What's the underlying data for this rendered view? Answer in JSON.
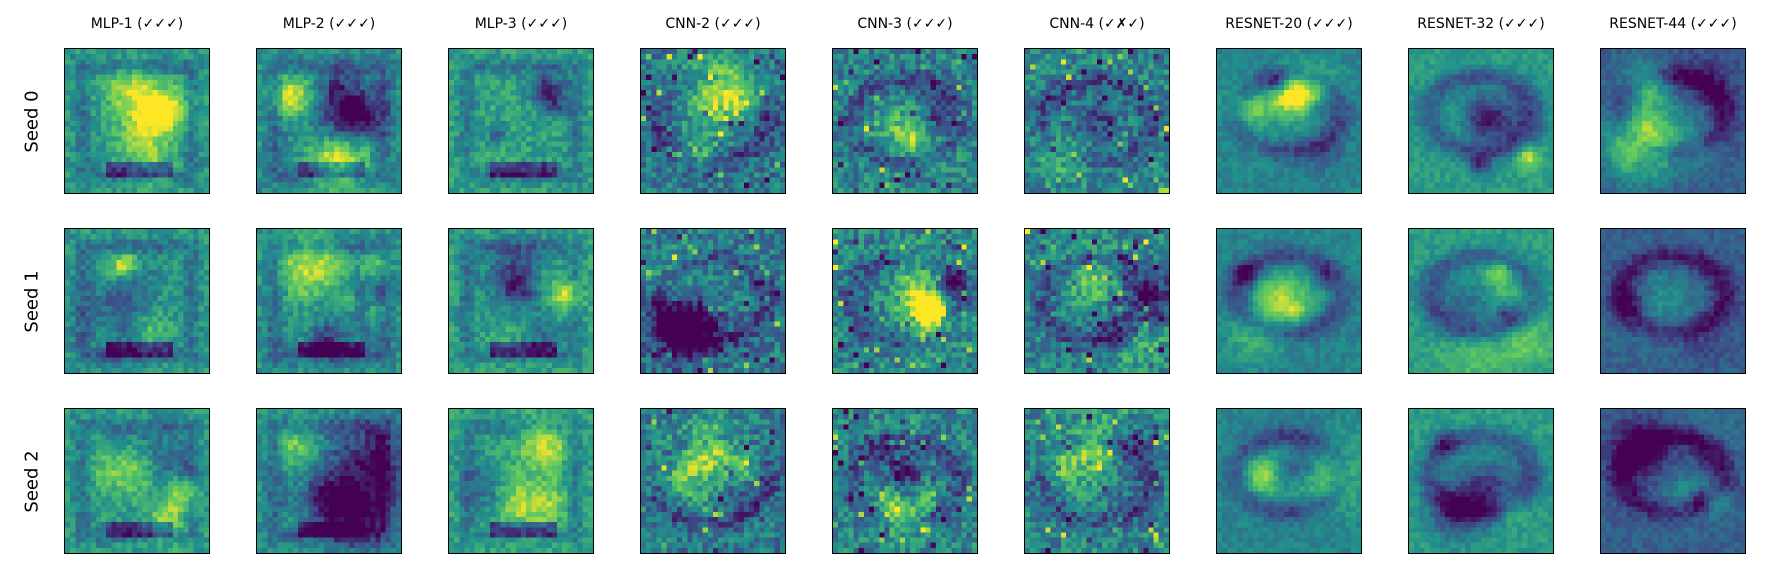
{
  "figure": {
    "columns": [
      "MLP-1 (✓✓✓)",
      "MLP-2 (✓✓✓)",
      "MLP-3 (✓✓✓)",
      "CNN-2 (✓✓✓)",
      "CNN-3 (✓✓✓)",
      "CNN-4 (✓✗✓)",
      "RESNET-20 (✓✓✓)",
      "RESNET-32 (✓✓✓)",
      "RESNET-44 (✓✓✓)"
    ],
    "rows": [
      "Seed 0",
      "Seed 1",
      "Seed 2"
    ],
    "colormap": [
      "#440154",
      "#3b528b",
      "#21918c",
      "#5ec962",
      "#fde725"
    ],
    "panel_style": {
      "MLP-1 (✓✓✓)": {
        "family": "mlp",
        "base": 0.55
      },
      "MLP-2 (✓✓✓)": {
        "family": "mlp",
        "base": 0.5
      },
      "MLP-3 (✓✓✓)": {
        "family": "mlp",
        "base": 0.58
      },
      "CNN-2 (✓✓✓)": {
        "family": "cnn",
        "base": 0.4
      },
      "CNN-3 (✓✓✓)": {
        "family": "cnn",
        "base": 0.45
      },
      "CNN-4 (✓✗✓)": {
        "family": "cnn",
        "base": 0.45
      },
      "RESNET-20 (✓✓✓)": {
        "family": "resnet",
        "base": 0.45
      },
      "RESNET-32 (✓✓✓)": {
        "family": "resnet",
        "base": 0.55
      },
      "RESNET-44 (✓✓✓)": {
        "family": "resnet",
        "base": 0.3
      }
    }
  }
}
